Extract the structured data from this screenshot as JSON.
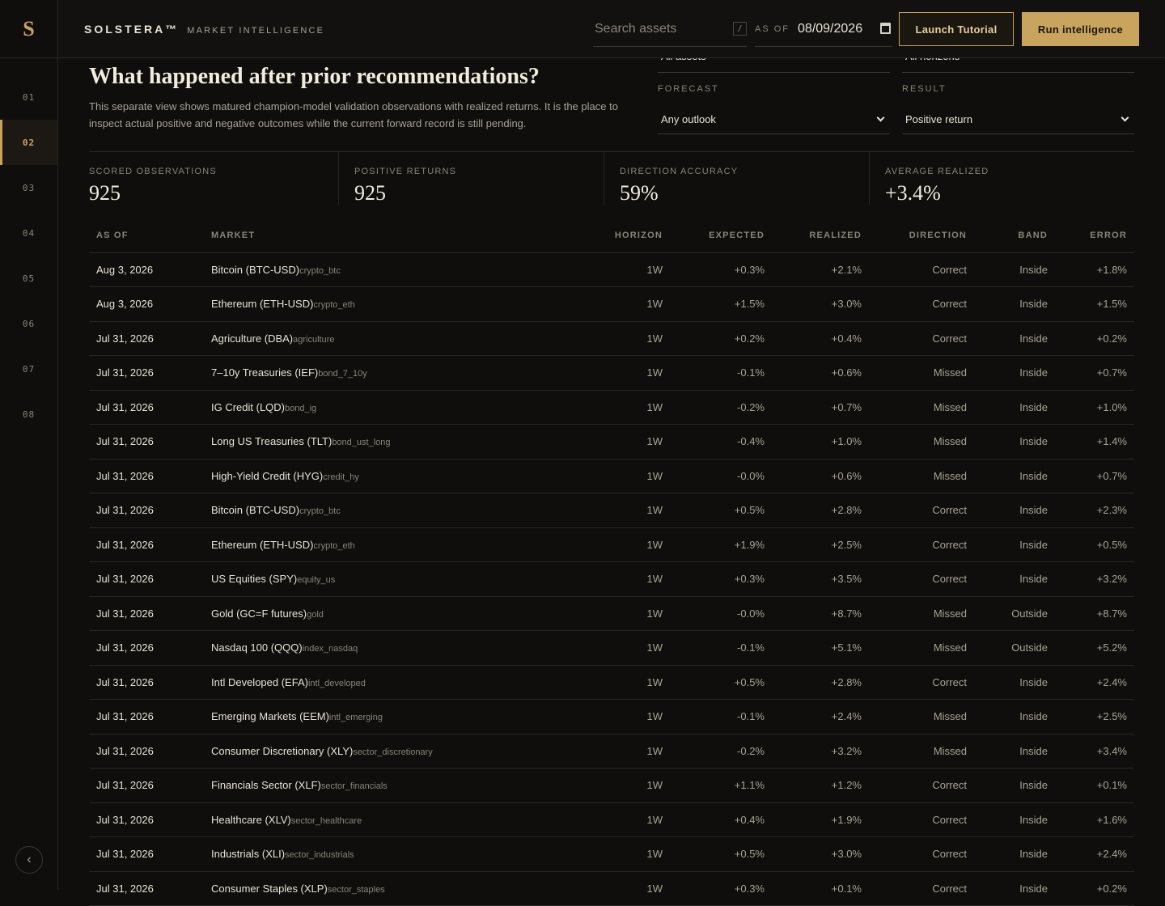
{
  "app": {
    "logo": "S",
    "brand": "SOLSTERA™",
    "brand_sub": "MARKET INTELLIGENCE"
  },
  "nav": {
    "items": [
      "01",
      "02",
      "03",
      "04",
      "05",
      "06",
      "07",
      "08"
    ],
    "active": "02",
    "collapse_icon": "‹"
  },
  "topbar": {
    "search_placeholder": "Search assets",
    "search_shortcut": "/",
    "asof_label": "AS OF",
    "asof_value": "08/09/2026",
    "tutorial_label": "Launch Tutorial",
    "run_label": "Run intelligence"
  },
  "page": {
    "title": "What happened after prior recommendations?",
    "description": "This separate view shows matured champion-model validation observations with realized returns. It is the place to inspect actual positive and negative outcomes while the current forward record is still pending."
  },
  "filters": {
    "asset_value": "All assets",
    "horizon_value": "All horizons",
    "forecast_label": "FORECAST",
    "forecast_value": "Any outlook",
    "result_label": "RESULT",
    "result_value": "Positive return"
  },
  "stats": [
    {
      "label": "SCORED OBSERVATIONS",
      "value": "925"
    },
    {
      "label": "POSITIVE RETURNS",
      "value": "925"
    },
    {
      "label": "DIRECTION ACCURACY",
      "value": "59%"
    },
    {
      "label": "AVERAGE REALIZED",
      "value": "+3.4%"
    }
  ],
  "table": {
    "headers": [
      "AS OF",
      "MARKET",
      "HORIZON",
      "EXPECTED",
      "REALIZED",
      "DIRECTION",
      "BAND",
      "ERROR"
    ],
    "rows": [
      [
        "Aug 3, 2026",
        "Bitcoin (BTC-USD)",
        "crypto_btc",
        "1W",
        "+0.3%",
        "+2.1%",
        "Correct",
        "Inside",
        "+1.8%"
      ],
      [
        "Aug 3, 2026",
        "Ethereum (ETH-USD)",
        "crypto_eth",
        "1W",
        "+1.5%",
        "+3.0%",
        "Correct",
        "Inside",
        "+1.5%"
      ],
      [
        "Jul 31, 2026",
        "Agriculture (DBA)",
        "agriculture",
        "1W",
        "+0.2%",
        "+0.4%",
        "Correct",
        "Inside",
        "+0.2%"
      ],
      [
        "Jul 31, 2026",
        "7–10y Treasuries (IEF)",
        "bond_7_10y",
        "1W",
        "-0.1%",
        "+0.6%",
        "Missed",
        "Inside",
        "+0.7%"
      ],
      [
        "Jul 31, 2026",
        "IG Credit (LQD)",
        "bond_ig",
        "1W",
        "-0.2%",
        "+0.7%",
        "Missed",
        "Inside",
        "+1.0%"
      ],
      [
        "Jul 31, 2026",
        "Long US Treasuries (TLT)",
        "bond_ust_long",
        "1W",
        "-0.4%",
        "+1.0%",
        "Missed",
        "Inside",
        "+1.4%"
      ],
      [
        "Jul 31, 2026",
        "High-Yield Credit (HYG)",
        "credit_hy",
        "1W",
        "-0.0%",
        "+0.6%",
        "Missed",
        "Inside",
        "+0.7%"
      ],
      [
        "Jul 31, 2026",
        "Bitcoin (BTC-USD)",
        "crypto_btc",
        "1W",
        "+0.5%",
        "+2.8%",
        "Correct",
        "Inside",
        "+2.3%"
      ],
      [
        "Jul 31, 2026",
        "Ethereum (ETH-USD)",
        "crypto_eth",
        "1W",
        "+1.9%",
        "+2.5%",
        "Correct",
        "Inside",
        "+0.5%"
      ],
      [
        "Jul 31, 2026",
        "US Equities (SPY)",
        "equity_us",
        "1W",
        "+0.3%",
        "+3.5%",
        "Correct",
        "Inside",
        "+3.2%"
      ],
      [
        "Jul 31, 2026",
        "Gold (GC=F futures)",
        "gold",
        "1W",
        "-0.0%",
        "+8.7%",
        "Missed",
        "Outside",
        "+8.7%"
      ],
      [
        "Jul 31, 2026",
        "Nasdaq 100 (QQQ)",
        "index_nasdaq",
        "1W",
        "-0.1%",
        "+5.1%",
        "Missed",
        "Outside",
        "+5.2%"
      ],
      [
        "Jul 31, 2026",
        "Intl Developed (EFA)",
        "intl_developed",
        "1W",
        "+0.5%",
        "+2.8%",
        "Correct",
        "Inside",
        "+2.4%"
      ],
      [
        "Jul 31, 2026",
        "Emerging Markets (EEM)",
        "intl_emerging",
        "1W",
        "-0.1%",
        "+2.4%",
        "Missed",
        "Inside",
        "+2.5%"
      ],
      [
        "Jul 31, 2026",
        "Consumer Discretionary (XLY)",
        "sector_discretionary",
        "1W",
        "-0.2%",
        "+3.2%",
        "Missed",
        "Inside",
        "+3.4%"
      ],
      [
        "Jul 31, 2026",
        "Financials Sector (XLF)",
        "sector_financials",
        "1W",
        "+1.1%",
        "+1.2%",
        "Correct",
        "Inside",
        "+0.1%"
      ],
      [
        "Jul 31, 2026",
        "Healthcare (XLV)",
        "sector_healthcare",
        "1W",
        "+0.4%",
        "+1.9%",
        "Correct",
        "Inside",
        "+1.6%"
      ],
      [
        "Jul 31, 2026",
        "Industrials (XLI)",
        "sector_industrials",
        "1W",
        "+0.5%",
        "+3.0%",
        "Correct",
        "Inside",
        "+2.4%"
      ],
      [
        "Jul 31, 2026",
        "Consumer Staples (XLP)",
        "sector_staples",
        "1W",
        "+0.3%",
        "+0.1%",
        "Correct",
        "Inside",
        "+0.2%"
      ]
    ]
  },
  "colors": {
    "accent": "#c9a45c",
    "background": "#0f0e0c",
    "text": "#e8e2d6",
    "muted": "#8a8478"
  }
}
